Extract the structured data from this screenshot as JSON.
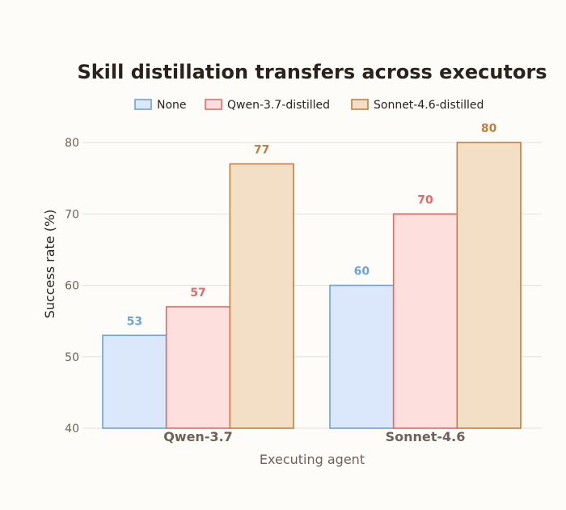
{
  "chart_data": {
    "type": "bar",
    "title": "Skill distillation transfers across executors",
    "xlabel": "Executing agent",
    "ylabel": "Success rate (%)",
    "categories": [
      "Qwen-3.7",
      "Sonnet-4.6"
    ],
    "ylim": [
      40,
      80
    ],
    "yticks": [
      40,
      50,
      60,
      70,
      80
    ],
    "grid": true,
    "legend_position": "top",
    "series": [
      {
        "name": "None",
        "values": [
          53,
          60
        ],
        "fill": "#dbe8fb",
        "stroke": "#6fa3d2",
        "label_color": "#6fa3d2"
      },
      {
        "name": "Qwen-3.7-distilled",
        "values": [
          57,
          70
        ],
        "fill": "#fde0dd",
        "stroke": "#e06c6a",
        "label_color": "#e06c6a"
      },
      {
        "name": "Sonnet-4.6-distilled",
        "values": [
          77,
          80
        ],
        "fill": "#f3dfc5",
        "stroke": "#c17f3e",
        "label_color": "#c17f3e"
      }
    ]
  }
}
